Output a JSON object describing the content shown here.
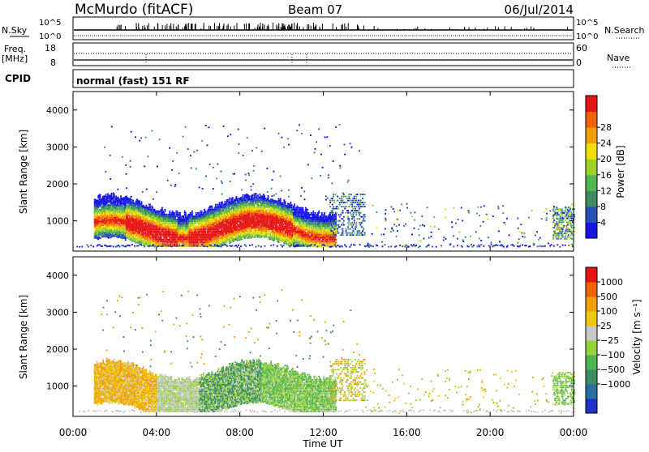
{
  "header": {
    "station": "McMurdo (fitACF)",
    "beam": "Beam 07",
    "date": "06/Jul/2014"
  },
  "strips": {
    "nsky_label": "N.Sky",
    "nsearch_label": "N.Search",
    "nsky_ticks": [
      "10^5",
      "10^0"
    ],
    "nsearch_ticks": [
      "10^5",
      "10^0"
    ],
    "freq_label": "Freq.",
    "freq_unit": "[MHz]",
    "freq_ticks": [
      "18",
      "8"
    ],
    "nave_label": "Nave",
    "nave_ticks": [
      "60",
      "0"
    ],
    "cpid_label": "CPID",
    "cpid_text": "normal (fast) 151 RF"
  },
  "chart_data": [
    {
      "type": "heatmap",
      "name": "power",
      "ylabel": "Slant Range [km]",
      "xlabel": "Time UT",
      "xlim": [
        0,
        24
      ],
      "ylim": [
        180,
        4500
      ],
      "yticks": [
        1000,
        2000,
        3000,
        4000
      ],
      "xticks": [
        "00:00",
        "04:00",
        "08:00",
        "12:00",
        "16:00",
        "20:00",
        "00:00"
      ],
      "colorbar": {
        "label": "Power [dB]",
        "ticks": [
          "4",
          "8",
          "12",
          "16",
          "20",
          "24",
          "28"
        ],
        "colors": [
          "#1414e6",
          "#2850b4",
          "#3c8c64",
          "#50b450",
          "#a0d228",
          "#f0e000",
          "#f0a000",
          "#f06400",
          "#e61414"
        ]
      }
    },
    {
      "type": "heatmap",
      "name": "velocity",
      "ylabel": "Slant Range [km]",
      "xlabel": "Time UT",
      "xlim": [
        0,
        24
      ],
      "ylim": [
        180,
        4500
      ],
      "yticks": [
        1000,
        2000,
        3000,
        4000
      ],
      "xticks": [
        "00:00",
        "04:00",
        "08:00",
        "12:00",
        "16:00",
        "20:00",
        "00:00"
      ],
      "colorbar": {
        "label": "Velocity [m s⁻¹]",
        "ticks": [
          "1000",
          "500",
          "100",
          "25",
          "−25",
          "−100",
          "−500",
          "−1000"
        ],
        "colors": [
          "#1e32c8",
          "#2870a0",
          "#3c8c64",
          "#50b450",
          "#96d23c",
          "#c8c8c8",
          "#f0c800",
          "#f0a000",
          "#f06400",
          "#e61414"
        ]
      }
    }
  ]
}
